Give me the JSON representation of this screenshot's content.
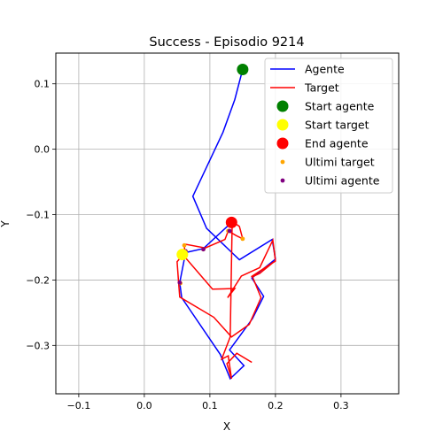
{
  "chart_data": {
    "type": "line",
    "title": "Success - Episodio 9214",
    "xlabel": "X",
    "ylabel": "Y",
    "xlim": [
      -0.135,
      0.388
    ],
    "ylim": [
      -0.374,
      0.147
    ],
    "grid": true,
    "legend_placement": "top-right",
    "xticks": [
      -0.1,
      0.0,
      0.1,
      0.2,
      0.3
    ],
    "xtick_labels": [
      "−0.1",
      "0.0",
      "0.1",
      "0.2",
      "0.3"
    ],
    "yticks": [
      0.1,
      0.0,
      -0.1,
      -0.2,
      -0.3
    ],
    "ytick_labels": [
      "0.1",
      "0.0",
      "−0.1",
      "−0.2",
      "−0.3"
    ],
    "series": [
      {
        "name": "Agente",
        "kind": "line",
        "color": "#0000ff",
        "points": [
          [
            0.15,
            0.122
          ],
          [
            0.138,
            0.076
          ],
          [
            0.12,
            0.026
          ],
          [
            0.074,
            -0.072
          ],
          [
            0.095,
            -0.121
          ],
          [
            0.145,
            -0.169
          ],
          [
            0.195,
            -0.138
          ],
          [
            0.2,
            -0.168
          ],
          [
            0.164,
            -0.197
          ],
          [
            0.182,
            -0.225
          ],
          [
            0.165,
            -0.259
          ],
          [
            0.13,
            -0.307
          ],
          [
            0.152,
            -0.331
          ],
          [
            0.131,
            -0.351
          ],
          [
            0.116,
            -0.314
          ],
          [
            0.057,
            -0.227
          ],
          [
            0.054,
            -0.204
          ],
          [
            0.063,
            -0.158
          ],
          [
            0.09,
            -0.152
          ],
          [
            0.133,
            -0.112
          ]
        ]
      },
      {
        "name": "Target",
        "kind": "line",
        "color": "#ff0000",
        "points": [
          [
            0.06,
            -0.16
          ],
          [
            0.05,
            -0.172
          ],
          [
            0.052,
            -0.2
          ],
          [
            0.054,
            -0.226
          ],
          [
            0.106,
            -0.257
          ],
          [
            0.133,
            -0.287
          ],
          [
            0.16,
            -0.268
          ],
          [
            0.178,
            -0.227
          ],
          [
            0.165,
            -0.195
          ],
          [
            0.176,
            -0.19
          ],
          [
            0.198,
            -0.172
          ],
          [
            0.163,
            -0.195
          ],
          [
            0.2,
            -0.171
          ],
          [
            0.196,
            -0.139
          ],
          [
            0.176,
            -0.181
          ],
          [
            0.148,
            -0.194
          ],
          [
            0.127,
            -0.227
          ],
          [
            0.138,
            -0.213
          ],
          [
            0.104,
            -0.214
          ],
          [
            0.062,
            -0.165
          ],
          [
            0.061,
            -0.145
          ],
          [
            0.093,
            -0.151
          ],
          [
            0.123,
            -0.138
          ],
          [
            0.128,
            -0.125
          ],
          [
            0.14,
            -0.132
          ],
          [
            0.15,
            -0.137
          ],
          [
            0.145,
            -0.118
          ],
          [
            0.135,
            -0.111
          ],
          [
            0.134,
            -0.112
          ]
        ]
      }
    ],
    "path_continuation": {
      "Target": [
        [
          0.134,
          -0.112
        ],
        [
          0.131,
          -0.287
        ],
        [
          0.118,
          -0.321
        ],
        [
          0.128,
          -0.316
        ],
        [
          0.133,
          -0.351
        ],
        [
          0.126,
          -0.328
        ],
        [
          0.141,
          -0.312
        ],
        [
          0.164,
          -0.326
        ]
      ]
    },
    "markers": [
      {
        "name": "Start agente",
        "color": "#008000",
        "x": 0.15,
        "y": 0.122,
        "size": "large"
      },
      {
        "name": "Start target",
        "color": "#ffff00",
        "x": 0.058,
        "y": -0.161,
        "size": "large"
      },
      {
        "name": "End agente",
        "color": "#ff0000",
        "x": 0.133,
        "y": -0.112,
        "size": "large"
      },
      {
        "name": "Ultimi target",
        "color": "#ffa500",
        "size": "small",
        "points": [
          [
            0.15,
            -0.137
          ],
          [
            0.061,
            -0.147
          ],
          [
            0.055,
            -0.205
          ],
          [
            0.128,
            -0.125
          ],
          [
            0.09,
            -0.153
          ]
        ]
      },
      {
        "name": "Ultimi agente",
        "color": "#800080",
        "size": "small",
        "points": [
          [
            0.09,
            -0.153
          ],
          [
            0.054,
            -0.204
          ],
          [
            0.13,
            -0.125
          ],
          [
            0.063,
            -0.156
          ]
        ]
      }
    ],
    "legend": [
      "Agente",
      "Target",
      "Start agente",
      "Start target",
      "End agente",
      "Ultimi target",
      "Ultimi agente"
    ]
  }
}
